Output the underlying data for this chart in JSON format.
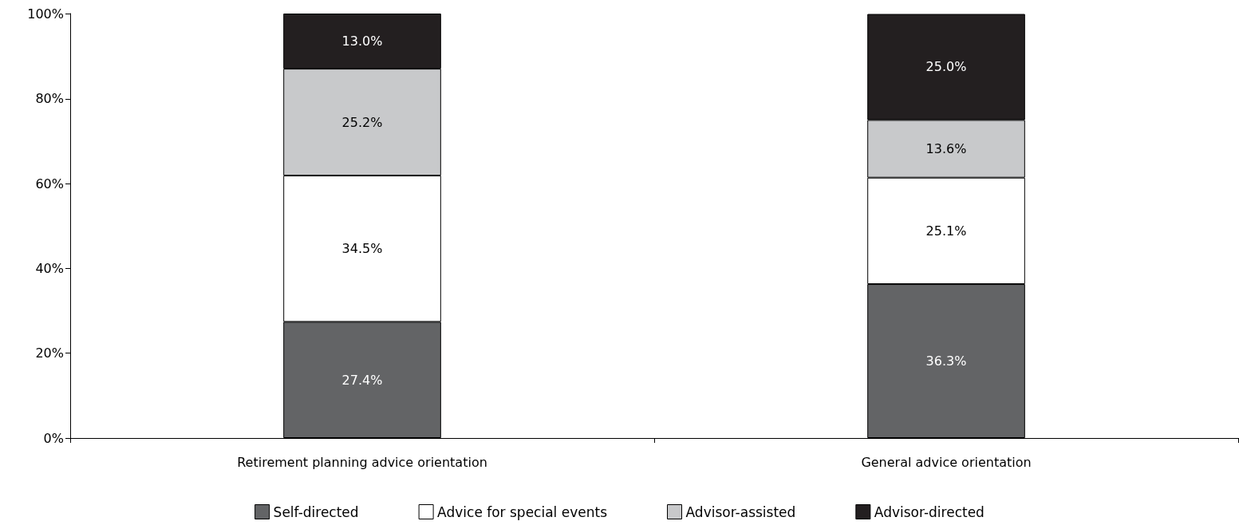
{
  "chart_data": {
    "type": "bar",
    "stacked": true,
    "categories": [
      "Retirement planning advice orientation",
      "General advice orientation"
    ],
    "series": [
      {
        "name": "Self-directed",
        "color": "#636466",
        "values": [
          27.4,
          36.3
        ],
        "value_labels": [
          "27.4%",
          "36.3%"
        ]
      },
      {
        "name": "Advice for special events",
        "color": "#ffffff",
        "values": [
          34.5,
          25.1
        ],
        "value_labels": [
          "34.5%",
          "25.1%"
        ]
      },
      {
        "name": "Advisor-assisted",
        "color": "#c8c9cb",
        "values": [
          25.2,
          13.6
        ],
        "value_labels": [
          "25.2%",
          "13.6%"
        ]
      },
      {
        "name": "Advisor-directed",
        "color": "#231f20",
        "values": [
          13.0,
          25.0
        ],
        "value_labels": [
          "13.0%",
          "25.0%"
        ]
      }
    ],
    "ylim": [
      0,
      100.1
    ],
    "yticks": [
      {
        "value": 0,
        "label": "0%"
      },
      {
        "value": 20,
        "label": "20%"
      },
      {
        "value": 40,
        "label": "40%"
      },
      {
        "value": 60,
        "label": "60%"
      },
      {
        "value": 80,
        "label": "80%"
      },
      {
        "value": 100,
        "label": "100%"
      }
    ],
    "grid": false,
    "legend": "bottom"
  }
}
